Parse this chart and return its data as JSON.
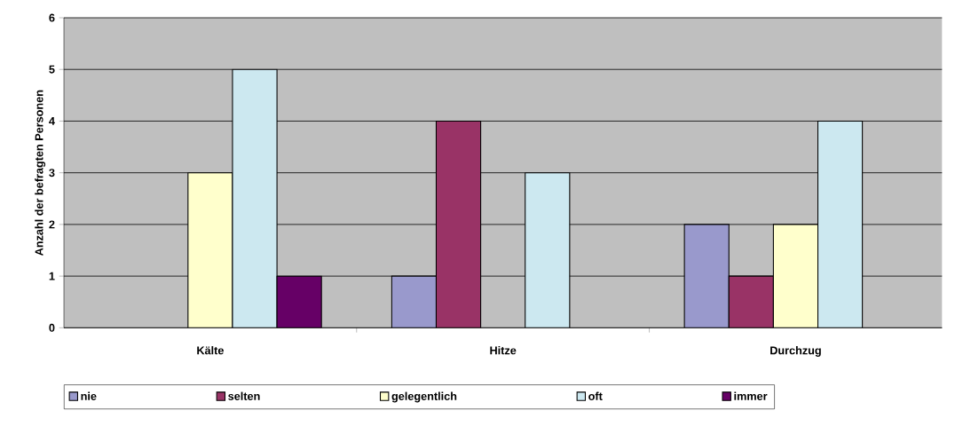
{
  "chart_data": {
    "type": "bar",
    "ylabel": "Anzahl der befragten Personen",
    "categories": [
      "Kälte",
      "Hitze",
      "Durchzug"
    ],
    "series": [
      {
        "name": "nie",
        "color": "#9999cc",
        "values": [
          0,
          1,
          2
        ]
      },
      {
        "name": "selten",
        "color": "#993366",
        "values": [
          0,
          4,
          1
        ]
      },
      {
        "name": "gelegentlich",
        "color": "#ffffcc",
        "values": [
          3,
          0,
          2
        ]
      },
      {
        "name": "oft",
        "color": "#cce8f0",
        "values": [
          5,
          3,
          4
        ]
      },
      {
        "name": "immer",
        "color": "#660066",
        "values": [
          1,
          0,
          0
        ]
      }
    ],
    "ylim": [
      0,
      6
    ],
    "yticks": [
      0,
      1,
      2,
      3,
      4,
      5,
      6
    ],
    "grid": "y",
    "legend": "bottom"
  }
}
